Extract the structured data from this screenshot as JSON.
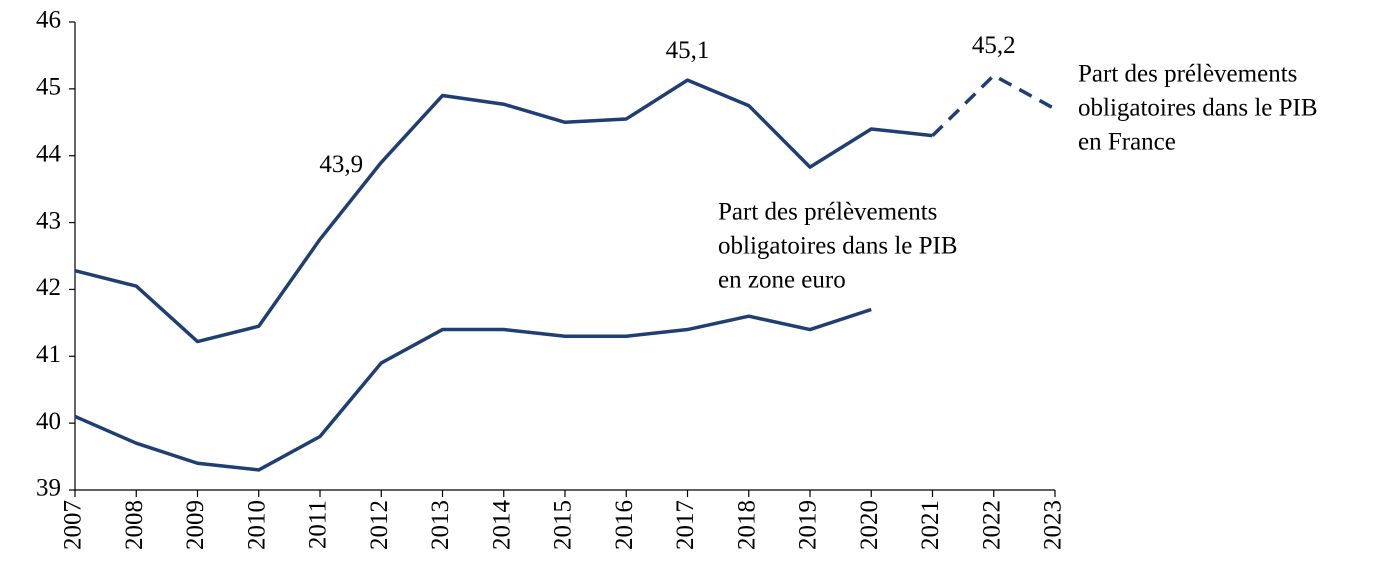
{
  "chart_data": {
    "type": "line",
    "categories": [
      "2007",
      "2008",
      "2009",
      "2010",
      "2011",
      "2012",
      "2013",
      "2014",
      "2015",
      "2016",
      "2017",
      "2018",
      "2019",
      "2020",
      "2021",
      "2022",
      "2023"
    ],
    "series": [
      {
        "name": [
          "Part des prélèvements",
          "obligatoires dans le PIB",
          "en France"
        ],
        "color": "#1f3f73",
        "values": [
          42.28,
          42.05,
          41.22,
          41.45,
          42.75,
          43.9,
          44.9,
          44.77,
          44.5,
          44.55,
          45.13,
          44.75,
          43.83,
          44.4,
          44.3,
          45.2,
          44.7
        ],
        "value_labels": [
          null,
          null,
          null,
          null,
          null,
          "43,9",
          null,
          null,
          null,
          null,
          "45,1",
          null,
          null,
          null,
          null,
          "45,2",
          null
        ],
        "dashed_after": "2021"
      },
      {
        "name": [
          "Part des prélèvements",
          "obligatoires dans le PIB",
          "en zone euro"
        ],
        "color": "#1f3f73",
        "values": [
          40.1,
          39.7,
          39.4,
          39.3,
          39.8,
          40.9,
          41.4,
          41.4,
          41.3,
          41.3,
          41.4,
          41.6,
          41.4,
          41.7,
          null,
          null,
          null
        ]
      }
    ],
    "ylim": [
      39,
      46
    ],
    "yticks": [
      39,
      40,
      41,
      42,
      43,
      44,
      45,
      46
    ],
    "grid": false
  }
}
